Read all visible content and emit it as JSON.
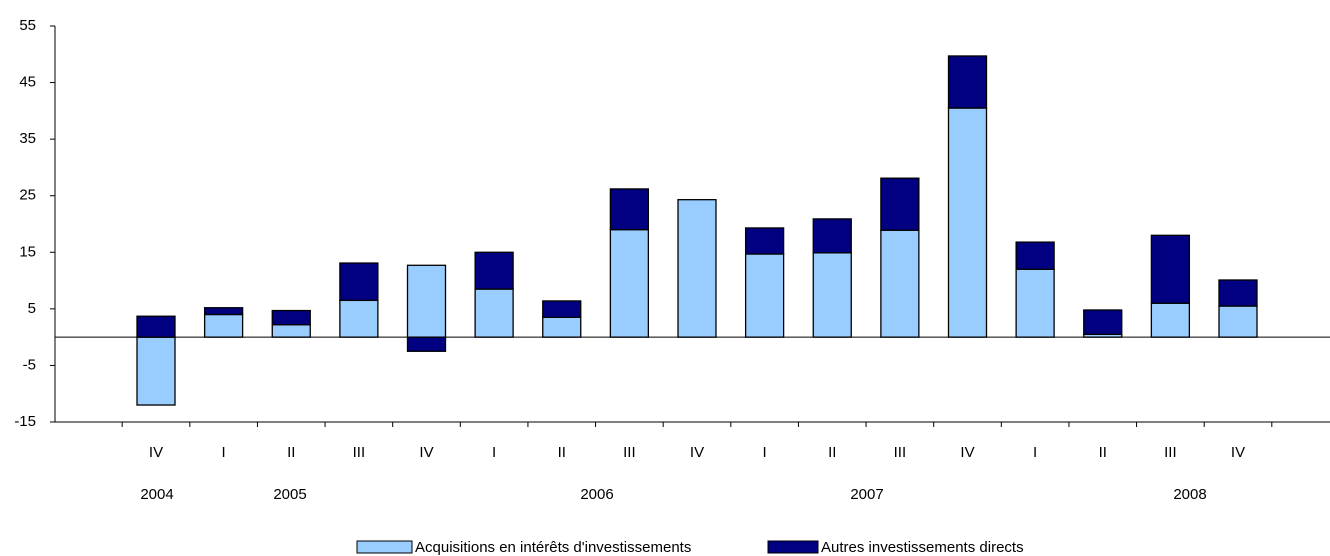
{
  "chart_data": {
    "type": "stacked_bar",
    "categories": [
      "IV",
      "I",
      "II",
      "III",
      "IV",
      "I",
      "II",
      "III",
      "IV",
      "I",
      "II",
      "III",
      "IV",
      "I",
      "II",
      "III",
      "IV"
    ],
    "years": [
      "2004",
      "2005",
      "2006",
      "2007",
      "2008"
    ],
    "series": [
      {
        "name": "Acquisitions en intérêts d'investissements",
        "color": "#99ccff",
        "values": [
          -12,
          4,
          2.2,
          6.5,
          12.7,
          8.5,
          3.5,
          19,
          24.3,
          14.7,
          14.9,
          18.9,
          40.5,
          12,
          0.5,
          6,
          5.5
        ]
      },
      {
        "name": "Autres investissements directs",
        "color": "#000080",
        "values": [
          3.7,
          1.2,
          2.5,
          6.6,
          -2.5,
          6.5,
          2.9,
          7.2,
          0,
          4.6,
          6,
          9.2,
          9.2,
          4.8,
          4.3,
          12,
          4.6
        ]
      }
    ],
    "ylim": [
      -15,
      55
    ],
    "yticks": [
      -15,
      -5,
      5,
      15,
      25,
      35,
      45,
      55
    ]
  }
}
